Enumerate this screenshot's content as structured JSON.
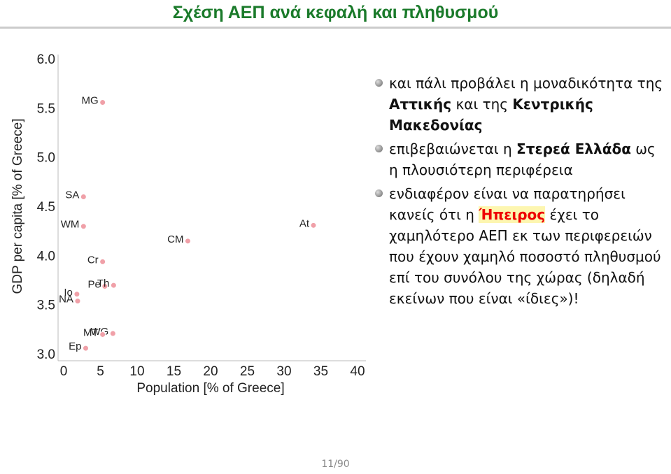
{
  "title": "Σχέση ΑΕΠ ανά κεφαλή και πληθυσμού",
  "chart_data": {
    "type": "scatter",
    "xlabel": "Population [% of Greece]",
    "ylabel": "GDP per capita [% of Greece]",
    "series": [
      {
        "color": "#f0a0a8",
        "labels": [
          "MG",
          "SA",
          "WM",
          "CM",
          "At",
          "Cr",
          "Pe",
          "Th",
          "Io",
          "NA",
          "WG",
          "MT",
          "Ep"
        ],
        "x": [
          5.3,
          2.7,
          2.7,
          16.9,
          34.0,
          5.3,
          5.6,
          6.8,
          1.8,
          1.9,
          6.7,
          5.3,
          3.0
        ],
        "values": [
          5.57,
          4.61,
          4.31,
          4.16,
          4.32,
          3.95,
          3.7,
          3.71,
          3.62,
          3.55,
          3.22,
          3.21,
          3.07
        ]
      }
    ],
    "xlim": [
      0,
      40
    ],
    "xticks": [
      0,
      5,
      10,
      15,
      20,
      25,
      30,
      35,
      40
    ],
    "ylim": [
      3,
      6
    ],
    "yticks": [
      {
        "value": 3,
        "label": "3.0"
      },
      {
        "value": 3.5,
        "label": "3.5"
      },
      {
        "value": 4,
        "label": "4.0"
      },
      {
        "value": 4.5,
        "label": "4.5"
      },
      {
        "value": 5,
        "label": "5.0"
      },
      {
        "value": 5.5,
        "label": "5.5"
      },
      {
        "value": 6,
        "label": "6.0"
      }
    ]
  },
  "bullets": [
    [
      {
        "text": "και πάλι προβάλει η μοναδικότητα της "
      },
      {
        "text": "Αττικής",
        "style": "bold"
      },
      {
        "text": " και της "
      },
      {
        "text": "Κεντρικής Μακεδονίας",
        "style": "bold"
      }
    ],
    [
      {
        "text": "επιβεβαιώνεται η "
      },
      {
        "text": "Στερεά Ελλάδα",
        "style": "bold"
      },
      {
        "text": " ως η πλουσιότερη περιφέρεια"
      }
    ],
    [
      {
        "text": "ενδιαφέρον είναι να παρατηρήσει κανείς ότι η "
      },
      {
        "text": "Ήπειρος",
        "style": "highlight"
      },
      {
        "text": " έχει το χαμηλότερο ΑΕΠ εκ των περιφερειών που έχουν χαμηλό ποσοστό πληθυσμού επί του συνόλου της χώρας (δηλαδή εκείνων που είναι «ίδιες»)!"
      }
    ]
  ],
  "page_number": "11/90"
}
